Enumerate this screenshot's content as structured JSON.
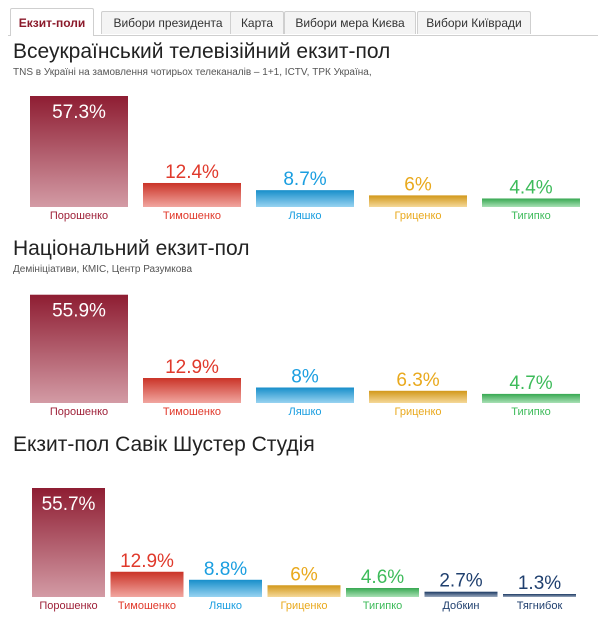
{
  "tabs": [
    {
      "label": "Екзит-поли",
      "active": true
    },
    {
      "label": "Вибори президента",
      "active": false
    },
    {
      "label": "Карта",
      "active": false
    },
    {
      "label": "Вибори мера Києва",
      "active": false
    },
    {
      "label": "Вибори Київради",
      "active": false
    }
  ],
  "colors": {
    "Порошенко": "#9e2038",
    "Тимошенко": "#e0392b",
    "Ляшко": "#1a9ee0",
    "Гриценко": "#e9a91d",
    "Тигипко": "#3dbb5a",
    "Добкин": "#1f3f6e",
    "Тягнибок": "#1f3f6e"
  },
  "sections": [
    {
      "title": "Всеукраїнський телевізійний екзит-пол",
      "subtitle": "TNS в Україні на замовлення чотирьох телеканалів – 1+1, ICTV, ТРК Україна,"
    },
    {
      "title": "Національний екзит-пол",
      "subtitle": "Демініціативи, КМІС, Центр Разумкова"
    },
    {
      "title": "Екзит-пол Савік Шустер Студія",
      "subtitle": ""
    }
  ],
  "chart_data": [
    {
      "type": "bar",
      "title": "Всеукраїнський телевізійний екзит-пол",
      "categories": [
        "Порошенко",
        "Тимошенко",
        "Ляшко",
        "Гриценко",
        "Тигипко"
      ],
      "values": [
        57.3,
        12.4,
        8.7,
        6,
        4.4
      ],
      "labels": [
        "57.3%",
        "12.4%",
        "8.7%",
        "6%",
        "4.4%"
      ]
    },
    {
      "type": "bar",
      "title": "Національний екзит-пол",
      "categories": [
        "Порошенко",
        "Тимошенко",
        "Ляшко",
        "Гриценко",
        "Тигипко"
      ],
      "values": [
        55.9,
        12.9,
        8,
        6.3,
        4.7
      ],
      "labels": [
        "55.9%",
        "12.9%",
        "8%",
        "6.3%",
        "4.7%"
      ]
    },
    {
      "type": "bar",
      "title": "Екзит-пол Савік Шустер Студія",
      "categories": [
        "Порошенко",
        "Тимошенко",
        "Ляшко",
        "Гриценко",
        "Тигипко",
        "Добкин",
        "Тягнибок"
      ],
      "values": [
        55.7,
        12.9,
        8.8,
        6,
        4.6,
        2.7,
        1.3
      ],
      "labels": [
        "55.7%",
        "12.9%",
        "8.8%",
        "6%",
        "4.6%",
        "2.7%",
        "1.3%"
      ]
    }
  ]
}
